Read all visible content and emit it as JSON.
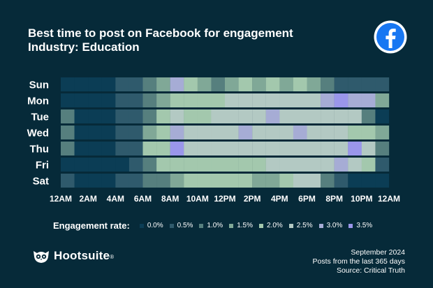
{
  "header": {
    "title": "Best time to post on Facebook for engagement",
    "subtitle": "Industry: Education",
    "logo_icon": "facebook-icon"
  },
  "chart_data": {
    "type": "heatmap",
    "title": "Best time to post on Facebook for engagement",
    "subtitle": "Industry: Education",
    "xlabel": "",
    "ylabel": "",
    "x_tick_labels": [
      "12AM",
      "2AM",
      "4AM",
      "6AM",
      "8AM",
      "10AM",
      "12PM",
      "2PM",
      "4PM",
      "6PM",
      "8PM",
      "10PM",
      "12AM"
    ],
    "y_categories": [
      "Sun",
      "Mon",
      "Tue",
      "Wed",
      "Thu",
      "Fri",
      "Sat"
    ],
    "hours": [
      0,
      1,
      2,
      3,
      4,
      5,
      6,
      7,
      8,
      9,
      10,
      11,
      12,
      13,
      14,
      15,
      16,
      17,
      18,
      19,
      20,
      21,
      22,
      23
    ],
    "value_unit": "engagement rate (%)",
    "value_range": [
      0,
      3.5
    ],
    "values": [
      [
        0.0,
        0.0,
        0.0,
        0.0,
        0.5,
        0.5,
        1.0,
        1.5,
        3.0,
        2.0,
        1.5,
        1.0,
        1.5,
        2.0,
        1.5,
        2.0,
        1.5,
        2.0,
        1.5,
        1.0,
        0.5,
        0.5,
        0.5,
        0.5
      ],
      [
        0.0,
        0.0,
        0.0,
        0.0,
        0.5,
        0.5,
        1.0,
        1.5,
        2.0,
        2.0,
        2.0,
        2.0,
        2.5,
        2.5,
        2.5,
        2.5,
        2.5,
        2.5,
        2.5,
        3.0,
        3.5,
        3.0,
        3.0,
        1.5
      ],
      [
        1.0,
        0.0,
        0.0,
        0.0,
        0.5,
        0.5,
        1.0,
        2.0,
        2.5,
        2.0,
        2.0,
        2.5,
        2.5,
        2.5,
        2.5,
        3.0,
        2.5,
        2.5,
        2.5,
        2.5,
        2.5,
        2.5,
        1.0,
        0.0
      ],
      [
        1.0,
        0.0,
        0.0,
        0.0,
        0.5,
        0.5,
        1.5,
        2.0,
        3.0,
        2.5,
        2.5,
        2.5,
        2.5,
        3.0,
        2.5,
        2.5,
        2.5,
        3.0,
        2.5,
        2.5,
        2.5,
        2.0,
        2.0,
        1.5
      ],
      [
        1.0,
        0.0,
        0.0,
        0.0,
        0.5,
        0.5,
        2.0,
        2.0,
        3.5,
        2.5,
        2.5,
        2.5,
        2.5,
        2.5,
        2.5,
        2.5,
        2.5,
        2.5,
        2.5,
        2.5,
        2.5,
        3.5,
        2.5,
        1.0
      ],
      [
        0.0,
        0.0,
        0.0,
        0.0,
        0.0,
        0.5,
        1.0,
        2.0,
        2.0,
        2.0,
        2.0,
        2.0,
        2.0,
        2.0,
        2.0,
        2.5,
        2.5,
        2.5,
        2.5,
        2.5,
        3.0,
        2.5,
        2.0,
        0.5
      ],
      [
        0.5,
        0.0,
        0.0,
        0.0,
        0.5,
        0.5,
        1.0,
        1.0,
        1.5,
        2.0,
        2.0,
        2.0,
        2.0,
        2.0,
        1.5,
        1.5,
        2.0,
        2.5,
        2.5,
        1.0,
        0.5,
        0.0,
        0.0,
        0.0
      ]
    ],
    "legend_title": "Engagement rate:",
    "legend": [
      {
        "label": "0.0%",
        "value": 0.0,
        "color": "#0b3d55"
      },
      {
        "label": "0.5%",
        "value": 0.5,
        "color": "#2f5a6c"
      },
      {
        "label": "1.0%",
        "value": 1.0,
        "color": "#567f7e"
      },
      {
        "label": "1.5%",
        "value": 1.5,
        "color": "#80a897"
      },
      {
        "label": "2.0%",
        "value": 2.0,
        "color": "#a3c8ad"
      },
      {
        "label": "2.5%",
        "value": 2.5,
        "color": "#b3c9c3"
      },
      {
        "label": "3.0%",
        "value": 3.0,
        "color": "#a6acd5"
      },
      {
        "label": "3.5%",
        "value": 3.5,
        "color": "#9a96ea"
      }
    ]
  },
  "footer": {
    "brand": "Hootsuite",
    "brand_mark": "®",
    "brand_icon": "owl-logo-icon",
    "source_lines": [
      "September 2024",
      "Posts from the last 365 days",
      "Source: Critical Truth"
    ]
  },
  "colors": {
    "background": "#062a39",
    "text": "#ffffff",
    "facebook_blue": "#1877f2"
  }
}
